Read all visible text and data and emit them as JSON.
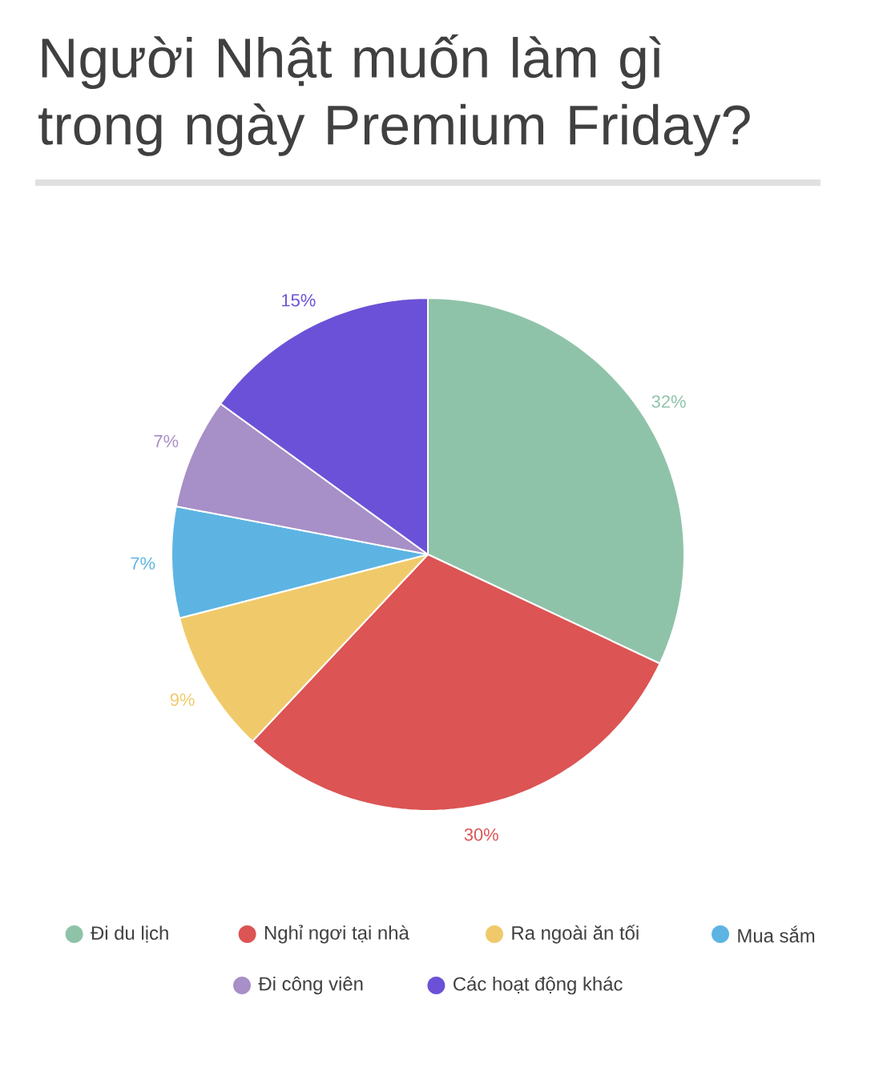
{
  "chart_data": {
    "type": "pie",
    "title": "Người Nhật muốn làm gì trong ngày Premium Friday?",
    "categories": [
      "Đi du lịch",
      "Nghỉ ngơi tại nhà",
      "Ra ngoài ăn tối",
      "Mua sắm",
      "Đi công viên",
      "Các hoạt động khác"
    ],
    "values": [
      32,
      30,
      9,
      7,
      7,
      15
    ],
    "value_labels": [
      "32%",
      "30%",
      "9%",
      "7%",
      "7%",
      "15%"
    ],
    "colors": [
      "#8fc3a9",
      "#dc5454",
      "#f0ca6a",
      "#5db4e2",
      "#a78fc7",
      "#6b51d7"
    ],
    "legend": "bottom"
  }
}
